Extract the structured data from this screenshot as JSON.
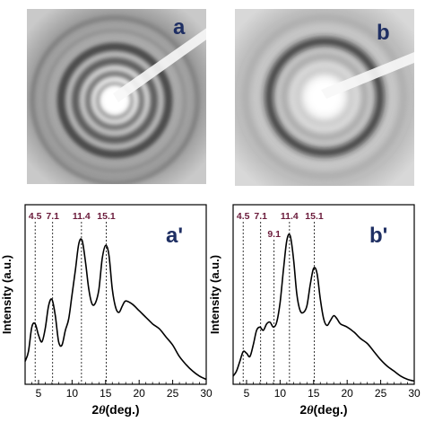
{
  "panels": [
    {
      "label": "a"
    },
    {
      "label": "b"
    }
  ],
  "colors": {
    "panel_label": "#1f2f63",
    "peak_label": "#6b1b3b",
    "curve": "#000000",
    "axis": "#000000"
  },
  "chart_data": [
    {
      "type": "line",
      "panel_label": "a'",
      "xlabel_text": "2",
      "xlabel_symbol": "θ",
      "xlabel_unit": "(deg.)",
      "ylabel": "Intensity (a.u.)",
      "xlim": [
        3,
        30
      ],
      "ylim": [
        0,
        100
      ],
      "x_ticks": [
        5,
        10,
        15,
        20,
        25,
        30
      ],
      "y_ticks_shown": false,
      "grid": false,
      "peak_markers": [
        {
          "x": 4.5,
          "label": "4.5",
          "row": 0
        },
        {
          "x": 7.1,
          "label": "7.1",
          "row": 0
        },
        {
          "x": 11.4,
          "label": "11.4",
          "row": 0
        },
        {
          "x": 15.1,
          "label": "15.1",
          "row": 0
        }
      ],
      "series": [
        {
          "x": [
            3.0,
            3.5,
            4.0,
            4.5,
            5.0,
            5.5,
            6.0,
            6.5,
            7.0,
            7.5,
            8.0,
            8.5,
            9.0,
            9.5,
            10.0,
            10.5,
            11.0,
            11.5,
            12.0,
            12.5,
            13.0,
            13.5,
            14.0,
            14.5,
            15.0,
            15.5,
            16.0,
            16.5,
            17.0,
            17.5,
            18.0,
            19.0,
            20.0,
            21.0,
            22.0,
            23.0,
            24.0,
            25.0,
            26.0,
            27.0,
            28.0,
            29.0,
            30.0
          ],
          "values": [
            14,
            20,
            35,
            37,
            30,
            26,
            34,
            48,
            52,
            42,
            26,
            24,
            33,
            40,
            55,
            70,
            86,
            88,
            75,
            58,
            49,
            50,
            58,
            77,
            85,
            79,
            58,
            47,
            44,
            48,
            51,
            49,
            45,
            41,
            37,
            34,
            29,
            24,
            17,
            12,
            8,
            5,
            3
          ]
        }
      ]
    },
    {
      "type": "line",
      "panel_label": "b'",
      "xlabel_text": "2",
      "xlabel_symbol": "θ",
      "xlabel_unit": "(deg.)",
      "ylabel": "Intensity (a.u.)",
      "xlim": [
        3,
        30
      ],
      "ylim": [
        0,
        100
      ],
      "x_ticks": [
        5,
        10,
        15,
        20,
        25,
        30
      ],
      "y_ticks_shown": false,
      "grid": false,
      "peak_markers": [
        {
          "x": 4.5,
          "label": "4.5",
          "row": 0
        },
        {
          "x": 7.1,
          "label": "7.1",
          "row": 0
        },
        {
          "x": 9.1,
          "label": "9.1",
          "row": 1
        },
        {
          "x": 11.4,
          "label": "11.4",
          "row": 0
        },
        {
          "x": 15.1,
          "label": "15.1",
          "row": 0
        }
      ],
      "series": [
        {
          "x": [
            3.0,
            3.5,
            4.0,
            4.5,
            5.0,
            5.5,
            6.0,
            6.5,
            7.0,
            7.5,
            8.0,
            8.5,
            9.0,
            9.5,
            10.0,
            10.5,
            11.0,
            11.5,
            12.0,
            12.5,
            13.0,
            13.5,
            14.0,
            14.5,
            15.0,
            15.5,
            16.0,
            16.5,
            17.0,
            17.5,
            18.0,
            18.5,
            19.0,
            20.0,
            21.0,
            22.0,
            23.0,
            24.0,
            25.0,
            26.0,
            27.0,
            28.0,
            29.0,
            30.0
          ],
          "values": [
            5,
            8,
            14,
            20,
            19,
            17,
            24,
            33,
            35,
            33,
            37,
            38,
            35,
            38,
            50,
            70,
            88,
            91,
            77,
            55,
            45,
            44,
            48,
            61,
            71,
            68,
            52,
            40,
            36,
            39,
            42,
            40,
            37,
            35,
            32,
            28,
            25,
            20,
            15,
            11,
            8,
            5,
            3,
            2
          ]
        }
      ]
    }
  ]
}
